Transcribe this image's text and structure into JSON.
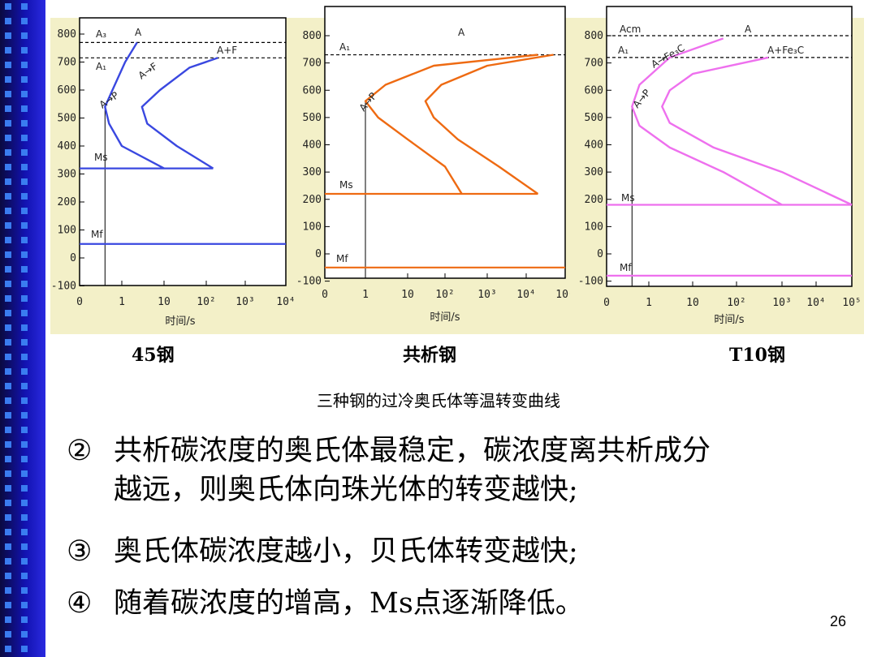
{
  "slide": {
    "page_number": "26",
    "caption": "三种钢的过冷奥氏体等温转变曲线",
    "bullets": [
      {
        "num": "②",
        "lines": [
          "共析碳浓度的奥氏体最稳定，碳浓度离共析成分",
          "越远，则奥氏体向珠光体的转变越快;"
        ]
      },
      {
        "num": "③",
        "lines": [
          "奥氏体碳浓度越小，贝氏体转变越快;"
        ]
      },
      {
        "num": "④",
        "lines": [
          "随着碳浓度的增高，Ms点逐渐降低。"
        ]
      }
    ]
  },
  "colors": {
    "c45": "#3a48e0",
    "eutectoid": "#ee6a12",
    "t10": "#ee70ee",
    "sidebar": "#1414b4",
    "panel": "#f3f0c8"
  },
  "chart_data": [
    {
      "type": "line",
      "label": "45钢",
      "xlabel": "时间/s",
      "x_ticks": [
        "0",
        "1",
        "10",
        "10²",
        "10³",
        "10⁴"
      ],
      "y_ticks": [
        "800",
        "700",
        "600",
        "500",
        "400",
        "300",
        "200",
        "100",
        "0",
        "-100"
      ],
      "ylim": [
        -100,
        800
      ],
      "annotations": [
        "A₃",
        "A",
        "A+F",
        "A₁",
        "A→F",
        "A→P",
        "Ms",
        "Mf"
      ],
      "A3": 770,
      "A1": 715,
      "Ms": 320,
      "Mf": 50,
      "start_curve": [
        [
          2.3,
          770
        ],
        [
          1.2,
          700
        ],
        [
          0.6,
          600
        ],
        [
          0.4,
          540
        ],
        [
          0.5,
          480
        ],
        [
          1.0,
          400
        ],
        [
          10,
          320
        ]
      ],
      "finish_curve": [
        [
          200,
          715
        ],
        [
          40,
          680
        ],
        [
          8,
          600
        ],
        [
          3,
          540
        ],
        [
          4,
          480
        ],
        [
          20,
          400
        ],
        [
          150,
          320
        ]
      ]
    },
    {
      "type": "line",
      "label": "共析钢",
      "xlabel": "时间/s",
      "x_ticks": [
        "0",
        "1",
        "10",
        "10²",
        "10³",
        "10⁴",
        "10⁵"
      ],
      "y_ticks": [
        "800",
        "700",
        "600",
        "500",
        "400",
        "300",
        "200",
        "100",
        "0",
        "-100"
      ],
      "ylim": [
        -100,
        800
      ],
      "annotations": [
        "A",
        "A₁",
        "A→P",
        "Ms",
        "Mf"
      ],
      "A1": 730,
      "Ms": 220,
      "Mf": -50,
      "start_curve": [
        [
          20000,
          730
        ],
        [
          50,
          690
        ],
        [
          3,
          620
        ],
        [
          1,
          560
        ],
        [
          2,
          500
        ],
        [
          10,
          420
        ],
        [
          100,
          320
        ],
        [
          250,
          220
        ]
      ],
      "finish_curve": [
        [
          50000,
          730
        ],
        [
          1000,
          690
        ],
        [
          80,
          620
        ],
        [
          30,
          560
        ],
        [
          50,
          500
        ],
        [
          200,
          420
        ],
        [
          2000,
          320
        ],
        [
          20000,
          220
        ]
      ]
    },
    {
      "type": "line",
      "label": "T10钢",
      "xlabel": "时间/s",
      "x_ticks": [
        "0",
        "1",
        "10",
        "10²",
        "10³",
        "10⁴",
        "10⁵"
      ],
      "y_ticks": [
        "800",
        "700",
        "600",
        "500",
        "400",
        "300",
        "200",
        "100",
        "0",
        "-100"
      ],
      "ylim": [
        -100,
        800
      ],
      "annotations": [
        "Acm",
        "A",
        "A₁",
        "A+Fe₃C",
        "A→Fe₃C",
        "A→P",
        "Ms",
        "Mf"
      ],
      "Acm": 800,
      "A1": 720,
      "Ms": 180,
      "Mf": -80,
      "start_curve": [
        [
          50,
          790
        ],
        [
          3,
          720
        ],
        [
          0.6,
          620
        ],
        [
          0.4,
          540
        ],
        [
          0.6,
          470
        ],
        [
          3,
          390
        ],
        [
          50,
          300
        ],
        [
          1000,
          180
        ]
      ],
      "finish_curve": [
        [
          500,
          720
        ],
        [
          10,
          660
        ],
        [
          3,
          600
        ],
        [
          2,
          540
        ],
        [
          3,
          480
        ],
        [
          30,
          390
        ],
        [
          1000,
          300
        ],
        [
          100000,
          180
        ]
      ]
    }
  ]
}
